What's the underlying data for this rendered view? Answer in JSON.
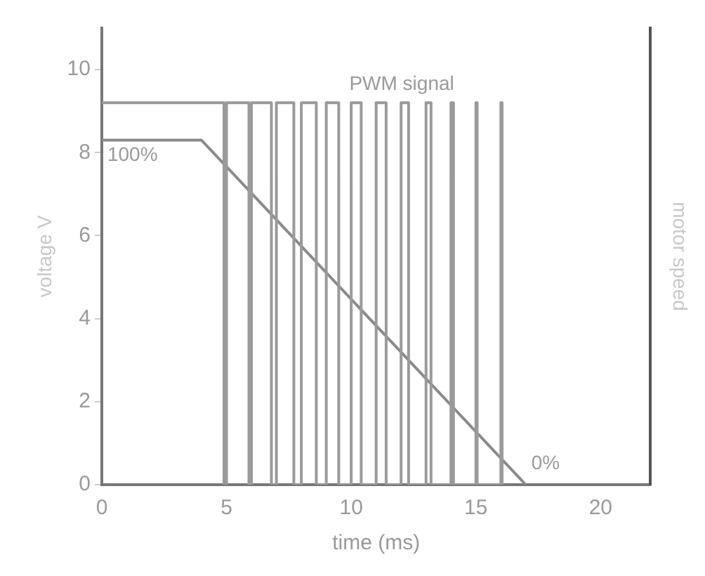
{
  "chart_data": {
    "type": "step",
    "xlabel": "time (ms)",
    "ylabel": "voltage V",
    "y2label": "motor speed",
    "xlim": [
      0,
      22
    ],
    "xticks": [
      0,
      5,
      10,
      15,
      20
    ],
    "ylim": [
      0,
      11
    ],
    "yticks": [
      0,
      2,
      4,
      6,
      8,
      10
    ],
    "grid": false,
    "legend": false,
    "marker": "none",
    "line_style": "solid",
    "series": [
      {
        "name": "PWM signal",
        "color": "#9a9a9a",
        "x": [
          0,
          4.9,
          5.0,
          5.9,
          6.0,
          6.8,
          7.0,
          7.7,
          8.0,
          8.6,
          9.0,
          9.5,
          10.0,
          10.4,
          11.0,
          11.4,
          12.0,
          12.3,
          13.0,
          13.2,
          14.0,
          14.1,
          15.0,
          15.05,
          16.0,
          16.05
        ],
        "values": [
          9.2,
          0,
          9.2,
          0,
          9.2,
          0,
          9.2,
          0,
          9.2,
          0,
          9.2,
          0,
          9.2,
          0,
          9.2,
          0,
          9.2,
          0,
          9.2,
          0,
          9.2,
          0,
          9.2,
          0,
          9.2,
          0
        ]
      },
      {
        "type": "line",
        "color": "#8a8a8a",
        "x": [
          0,
          4.0,
          17.0
        ],
        "values": [
          8.3,
          8.3,
          0
        ]
      }
    ],
    "annotations": [
      {
        "text": "100%",
        "x": 0,
        "y": 8.3
      },
      {
        "text": "0%",
        "x": 17,
        "y": 0
      }
    ]
  }
}
